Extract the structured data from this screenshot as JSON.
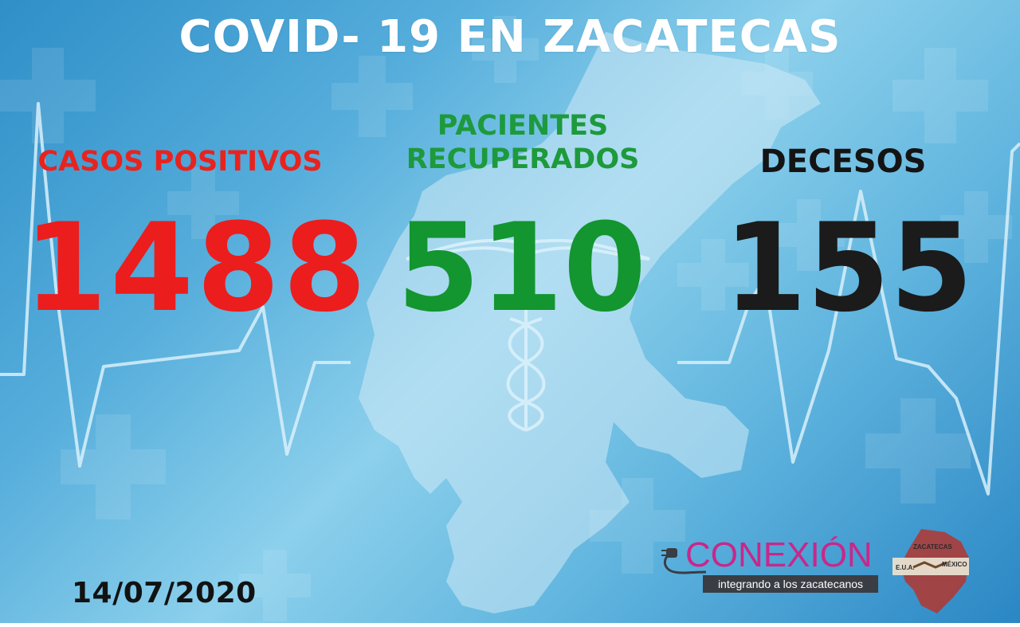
{
  "title": "COVID- 19 EN ZACATECAS",
  "stats": {
    "casos": {
      "label": "CASOS POSITIVOS",
      "value": "1488",
      "color": "#ec1d1d"
    },
    "recuperados": {
      "label": "PACIENTES RECUPERADOS",
      "value": "510",
      "color": "#13952f"
    },
    "decesos": {
      "label": "DECESOS",
      "value": "155",
      "color": "#1b1b1b"
    }
  },
  "date": "14/07/2020",
  "logo": {
    "name": "CONEXIÓN",
    "tagline": "integrando a los zacatecanos",
    "map_top": "ZACATECAS",
    "map_left": "E.U.A.",
    "map_right": "MÉXICO",
    "brand_color": "#c9278b"
  },
  "background_icons": [
    "medical-cross-icon",
    "heartbeat-line-icon",
    "caduceus-icon",
    "zacatecas-map-silhouette"
  ]
}
